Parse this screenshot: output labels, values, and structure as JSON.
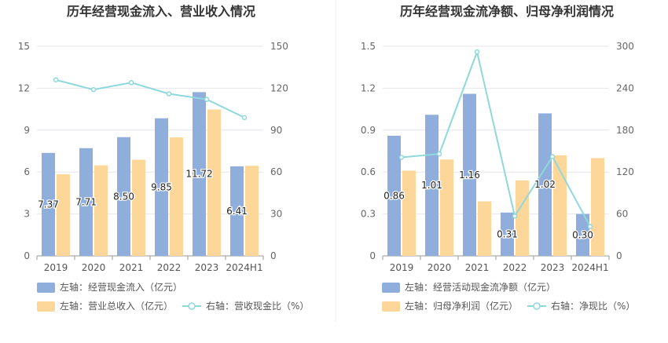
{
  "colors": {
    "left_bar": "#8FAEDB",
    "right_bar": "#FDD79A",
    "line": "#8FD8DC",
    "grid": "#E6E6EE",
    "axis": "#999999"
  },
  "chart_data": [
    {
      "type": "bar",
      "title": "历年经营现金流入、营业收入情况",
      "categories": [
        "2019",
        "2020",
        "2021",
        "2022",
        "2023",
        "2024H1"
      ],
      "y_left": {
        "ticks": [
          "0",
          "3",
          "6",
          "9",
          "12",
          "15"
        ],
        "ylim": [
          0,
          15
        ]
      },
      "y_right": {
        "ticks": [
          "0",
          "30",
          "60",
          "90",
          "120",
          "150"
        ],
        "ylim": [
          0,
          150
        ]
      },
      "series": [
        {
          "name": "左轴：经营现金流入（亿元）",
          "kind": "bar",
          "axis": "left",
          "values": [
            7.37,
            7.71,
            8.5,
            9.85,
            11.72,
            6.41
          ],
          "labels": [
            "7.37",
            "7.71",
            "8.50",
            "9.85",
            "11.72",
            "6.41"
          ]
        },
        {
          "name": "左轴：营业总收入（亿元）",
          "kind": "bar",
          "axis": "left",
          "values": [
            5.85,
            6.48,
            6.88,
            8.48,
            10.48,
            6.45
          ]
        },
        {
          "name": "右轴：营收现金比（%）",
          "kind": "line",
          "axis": "right",
          "values": [
            126,
            119,
            124,
            116,
            112,
            99
          ]
        }
      ]
    },
    {
      "type": "bar",
      "title": "历年经营现金流净额、归母净利润情况",
      "categories": [
        "2019",
        "2020",
        "2021",
        "2022",
        "2023",
        "2024H1"
      ],
      "y_left": {
        "ticks": [
          "0",
          "0.3",
          "0.6",
          "0.9",
          "1.2",
          "1.5"
        ],
        "ylim": [
          0,
          1.5
        ]
      },
      "y_right": {
        "ticks": [
          "0",
          "60",
          "120",
          "180",
          "240",
          "300"
        ],
        "ylim": [
          0,
          300
        ]
      },
      "series": [
        {
          "name": "左轴：经营活动现金流净额（亿元）",
          "kind": "bar",
          "axis": "left",
          "values": [
            0.86,
            1.01,
            1.16,
            0.31,
            1.02,
            0.3
          ],
          "labels": [
            "0.86",
            "1.01",
            "1.16",
            "0.31",
            "1.02",
            "0.30"
          ]
        },
        {
          "name": "左轴：归母净利润（亿元）",
          "kind": "bar",
          "axis": "left",
          "values": [
            0.61,
            0.69,
            0.39,
            0.54,
            0.72,
            0.7
          ]
        },
        {
          "name": "右轴：净现比（%）",
          "kind": "line",
          "axis": "right",
          "values": [
            141,
            146,
            292,
            57,
            142,
            42
          ]
        }
      ]
    }
  ]
}
